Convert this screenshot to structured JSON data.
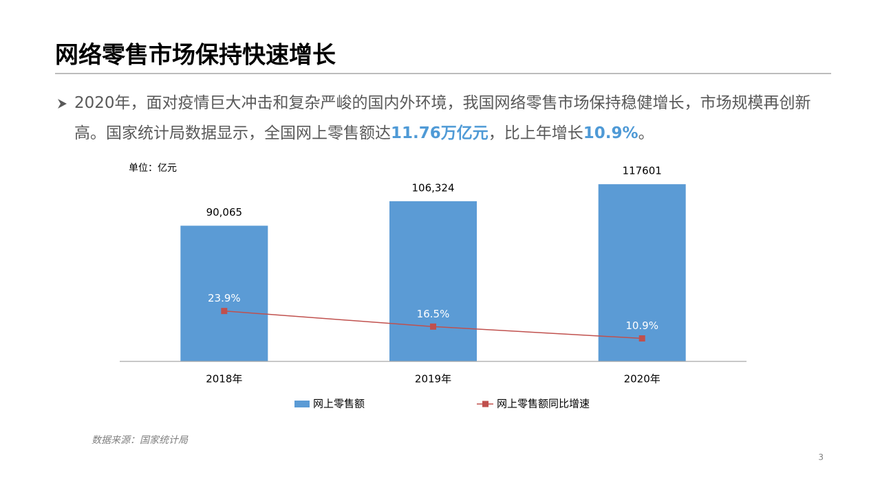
{
  "title": "网络零售市场保持快速增长",
  "bullet": {
    "parts": [
      "2020年，面对疫情巨大冲击和复杂严峻的国内外环境，我国网络零售市场保持稳健增长，市场规模再创新高。国家统计局数据显示，全国网上零售额达",
      "11.76万亿元",
      "，比上年增长",
      "10.9%",
      "。"
    ]
  },
  "chart_data": {
    "type": "bar",
    "unit_label": "单位：亿元",
    "categories": [
      "2018年",
      "2019年",
      "2020年"
    ],
    "series": [
      {
        "name": "网上零售额",
        "type": "bar",
        "color": "#5b9bd5",
        "values": [
          90065,
          106324,
          117601
        ],
        "value_labels": [
          "90,065",
          "106,324",
          "117601"
        ]
      },
      {
        "name": "网上零售额同比增速",
        "type": "line",
        "axis": "y2",
        "color": "#c0504d",
        "values": [
          23.9,
          16.5,
          10.9
        ],
        "value_labels": [
          "23.9%",
          "16.5%",
          "10.9%"
        ]
      }
    ],
    "ylim": [
      0,
      140000
    ],
    "y2lim": [
      0,
      100
    ],
    "legend": "bottom"
  },
  "source": "数据来源：国家统计局",
  "page_number": 3
}
